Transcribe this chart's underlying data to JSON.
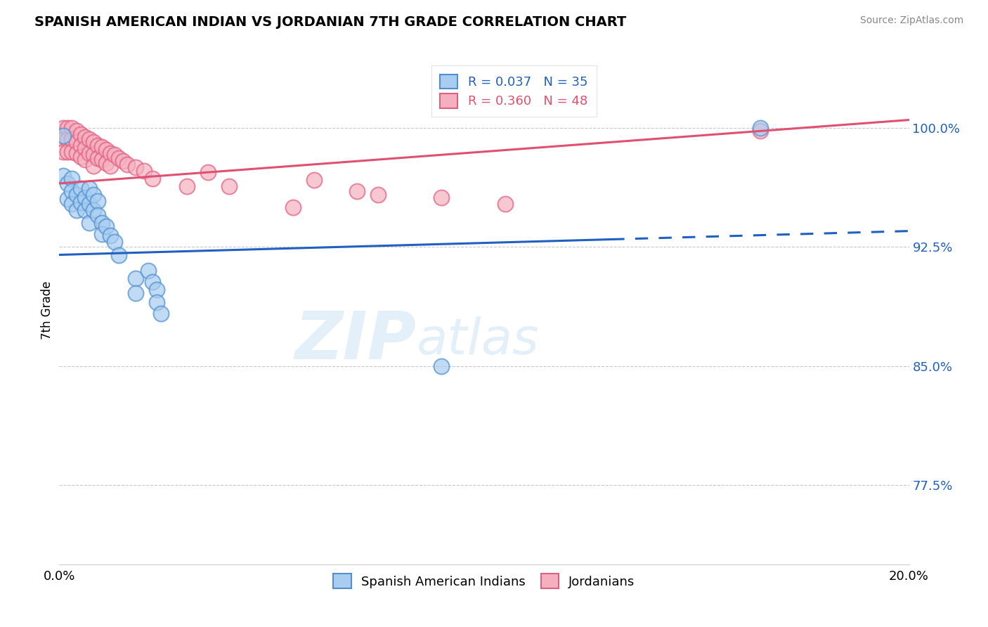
{
  "title": "SPANISH AMERICAN INDIAN VS JORDANIAN 7TH GRADE CORRELATION CHART",
  "source": "Source: ZipAtlas.com",
  "ylabel": "7th Grade",
  "xlim": [
    0.0,
    0.2
  ],
  "ylim": [
    0.725,
    1.045
  ],
  "xtick_labels": [
    "0.0%",
    "20.0%"
  ],
  "xtick_vals": [
    0.0,
    0.2
  ],
  "ytick_labels": [
    "77.5%",
    "85.0%",
    "92.5%",
    "100.0%"
  ],
  "ytick_vals": [
    0.775,
    0.85,
    0.925,
    1.0
  ],
  "blue_R": 0.037,
  "blue_N": 35,
  "pink_R": 0.36,
  "pink_N": 48,
  "blue_color": "#a8cdf0",
  "pink_color": "#f5b0c0",
  "blue_edge_color": "#5090d0",
  "pink_edge_color": "#e06080",
  "blue_line_color": "#2060c0",
  "pink_line_color": "#e05070",
  "blue_scatter_x": [
    0.001,
    0.001,
    0.002,
    0.002,
    0.003,
    0.003,
    0.003,
    0.004,
    0.004,
    0.005,
    0.005,
    0.006,
    0.006,
    0.007,
    0.007,
    0.007,
    0.008,
    0.008,
    0.009,
    0.009,
    0.01,
    0.01,
    0.011,
    0.012,
    0.013,
    0.014,
    0.018,
    0.018,
    0.021,
    0.022,
    0.023,
    0.023,
    0.024,
    0.09,
    0.165
  ],
  "blue_scatter_y": [
    0.995,
    0.97,
    0.965,
    0.955,
    0.968,
    0.96,
    0.952,
    0.958,
    0.948,
    0.962,
    0.953,
    0.956,
    0.948,
    0.962,
    0.952,
    0.94,
    0.958,
    0.948,
    0.954,
    0.945,
    0.94,
    0.933,
    0.938,
    0.932,
    0.928,
    0.92,
    0.905,
    0.896,
    0.91,
    0.903,
    0.898,
    0.89,
    0.883,
    0.85,
    1.0
  ],
  "pink_scatter_x": [
    0.001,
    0.001,
    0.001,
    0.002,
    0.002,
    0.002,
    0.003,
    0.003,
    0.003,
    0.004,
    0.004,
    0.004,
    0.005,
    0.005,
    0.005,
    0.006,
    0.006,
    0.006,
    0.007,
    0.007,
    0.008,
    0.008,
    0.008,
    0.009,
    0.009,
    0.01,
    0.01,
    0.011,
    0.011,
    0.012,
    0.012,
    0.013,
    0.014,
    0.015,
    0.016,
    0.018,
    0.02,
    0.022,
    0.03,
    0.035,
    0.04,
    0.055,
    0.06,
    0.07,
    0.075,
    0.09,
    0.105,
    0.165
  ],
  "pink_scatter_y": [
    1.0,
    0.993,
    0.985,
    1.0,
    0.993,
    0.985,
    1.0,
    0.993,
    0.985,
    0.998,
    0.991,
    0.984,
    0.996,
    0.989,
    0.982,
    0.994,
    0.987,
    0.98,
    0.993,
    0.984,
    0.991,
    0.983,
    0.976,
    0.989,
    0.981,
    0.988,
    0.98,
    0.986,
    0.978,
    0.984,
    0.976,
    0.983,
    0.981,
    0.979,
    0.977,
    0.975,
    0.973,
    0.968,
    0.963,
    0.972,
    0.963,
    0.95,
    0.967,
    0.96,
    0.958,
    0.956,
    0.952,
    0.998
  ],
  "blue_line_x0": 0.0,
  "blue_line_x_transition": 0.13,
  "blue_line_x1": 0.2,
  "blue_line_y0": 0.92,
  "blue_line_y1": 0.935,
  "pink_line_x0": 0.0,
  "pink_line_x1": 0.2,
  "pink_line_y0": 0.965,
  "pink_line_y1": 1.005,
  "watermark_zip": "ZIP",
  "watermark_atlas": "atlas",
  "legend_label_blue": "Spanish American Indians",
  "legend_label_pink": "Jordanians"
}
